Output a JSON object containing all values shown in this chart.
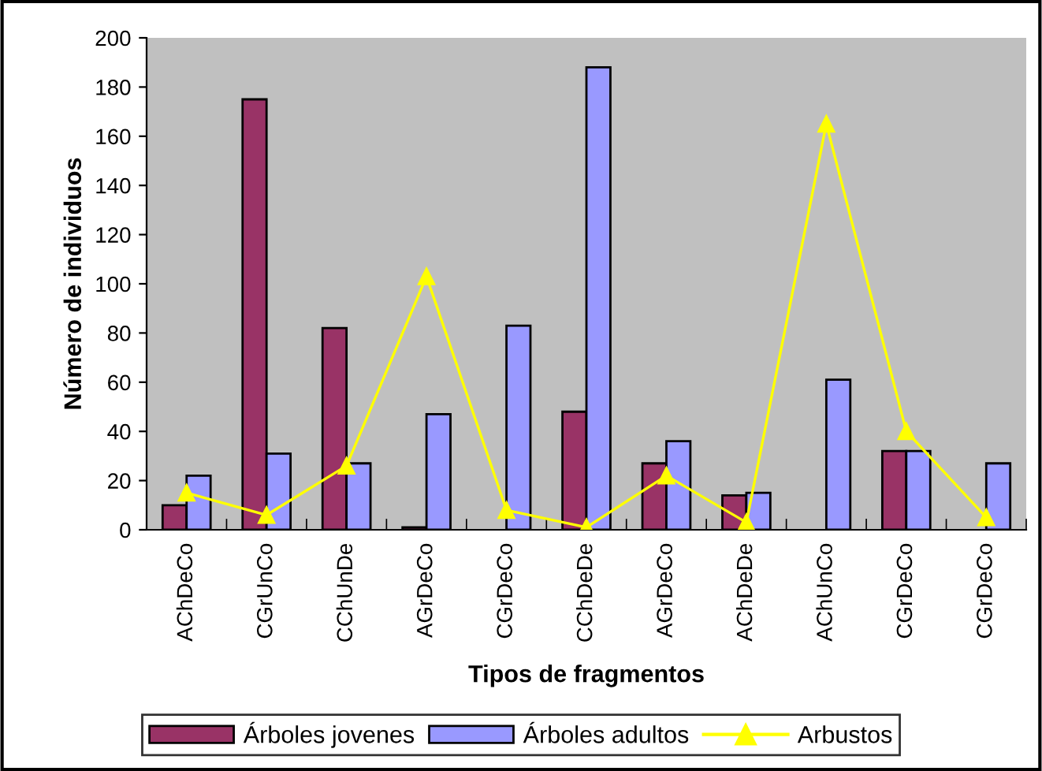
{
  "chart_data": {
    "type": "bar",
    "xlabel": "Tipos de fragmentos",
    "ylabel": "Número de individuos",
    "categories": [
      "AChDeCo",
      "CGrUnCo",
      "CChUnDe",
      "AGrDeCo",
      "CGrDeCo",
      "CChDeDe",
      "AGrDeCo",
      "AChDeDe",
      "AChUnCo",
      "CGrDeCo",
      "CGrDeCo"
    ],
    "series": [
      {
        "name": "Árboles jovenes",
        "color": "#993366",
        "values": [
          10,
          175,
          82,
          1,
          null,
          48,
          27,
          14,
          null,
          32,
          null
        ]
      },
      {
        "name": "Árboles adultos",
        "color": "#9999ff",
        "values": [
          22,
          31,
          27,
          47,
          83,
          188,
          36,
          15,
          61,
          32,
          27
        ]
      },
      {
        "name": "Arbustos",
        "type": "line",
        "color": "#ffff00",
        "marker": "triangle",
        "values": [
          15,
          6,
          26,
          103,
          8,
          1,
          22,
          3,
          165,
          40,
          5
        ]
      }
    ],
    "ylim": [
      0,
      200
    ],
    "yticks": [
      0,
      20,
      40,
      60,
      80,
      100,
      120,
      140,
      160,
      180,
      200
    ],
    "grid": false,
    "legend": "bottom"
  }
}
